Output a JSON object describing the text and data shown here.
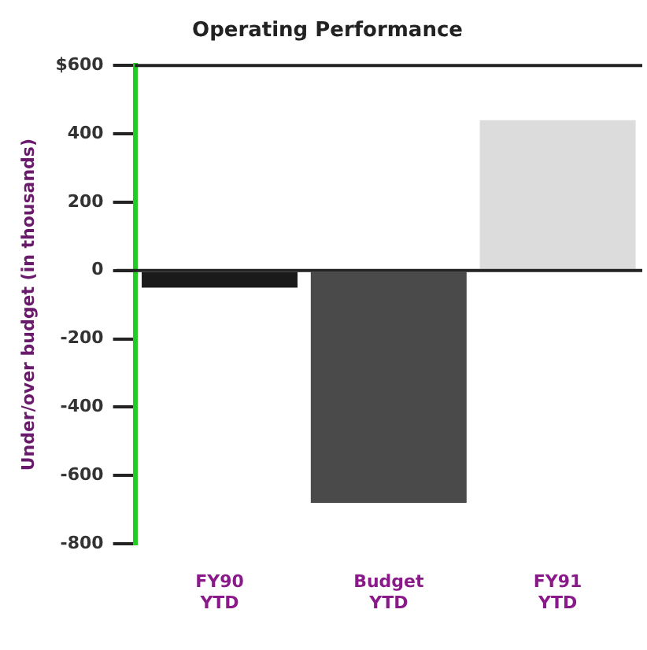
{
  "chart_data": {
    "type": "bar",
    "title": "Operating Performance",
    "ylabel": "Under/over budget (in thousands)",
    "categories": [
      "FY90 YTD",
      "Budget YTD",
      "FY91 YTD"
    ],
    "values": [
      -50,
      -680,
      440
    ],
    "colors": [
      "#1a1a1a",
      "#4a4a4a",
      "#dcdcdc"
    ],
    "ylim": [
      -800,
      600
    ],
    "yticks": [
      {
        "value": 600,
        "label": "$600"
      },
      400,
      200,
      0,
      -200,
      -400,
      -600,
      -800
    ],
    "ref_lines": [
      {
        "axis": "y",
        "value": 0,
        "color": "#222222"
      }
    ],
    "grid": false,
    "legend": false
  }
}
